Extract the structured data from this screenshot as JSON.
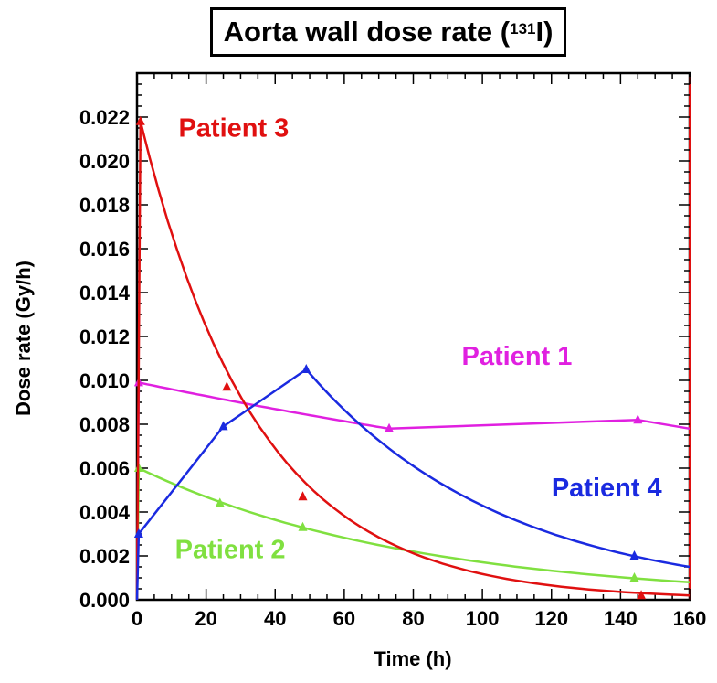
{
  "chart_data": {
    "type": "line",
    "title": {
      "prefix": "Aorta wall dose rate (",
      "superscript": "131",
      "suffix": "I)"
    },
    "xlabel": "Time (h)",
    "ylabel": "Dose rate (Gy/h)",
    "xlim": [
      0,
      160
    ],
    "ylim": [
      0,
      0.024
    ],
    "xticks": [
      0,
      20,
      40,
      60,
      80,
      100,
      120,
      140,
      160
    ],
    "yticks": [
      "0.000",
      "0.002",
      "0.004",
      "0.006",
      "0.008",
      "0.010",
      "0.012",
      "0.014",
      "0.016",
      "0.018",
      "0.020",
      "0.022"
    ],
    "grid": false,
    "legend": "none (direct labels)",
    "series": [
      {
        "name": "Patient 1",
        "color": "#e020e0",
        "measured": [
          [
            0.5,
            0.0099
          ],
          [
            73,
            0.0078
          ],
          [
            145,
            0.0082
          ]
        ],
        "curve": [
          [
            0,
            0.0
          ],
          [
            0.5,
            0.0099
          ],
          [
            73,
            0.0078
          ],
          [
            145,
            0.0082
          ],
          [
            160,
            0.0078
          ]
        ]
      },
      {
        "name": "Patient 2",
        "color": "#80e040",
        "measured": [
          [
            0.5,
            0.006
          ],
          [
            24,
            0.0044
          ],
          [
            48,
            0.0033
          ],
          [
            144,
            0.001
          ]
        ],
        "curve": [
          [
            0,
            0.0
          ],
          [
            0.5,
            0.006
          ],
          [
            160,
            0.0008
          ]
        ]
      },
      {
        "name": "Patient 3",
        "color": "#e01010",
        "measured": [
          [
            1,
            0.0218
          ],
          [
            26,
            0.0097
          ],
          [
            48,
            0.0047
          ],
          [
            146,
            0.0002
          ]
        ],
        "curve": [
          [
            0,
            0.0
          ],
          [
            1,
            0.0218
          ],
          [
            160,
            0.0002
          ]
        ]
      },
      {
        "name": "Patient 4",
        "color": "#1a2ae0",
        "measured": [
          [
            0.5,
            0.003
          ],
          [
            25,
            0.0079
          ],
          [
            49,
            0.0105
          ],
          [
            144,
            0.002
          ]
        ],
        "curve": [
          [
            0,
            0.0
          ],
          [
            0.5,
            0.003
          ],
          [
            25,
            0.0079
          ],
          [
            49,
            0.0105
          ],
          [
            160,
            0.0015
          ]
        ]
      }
    ],
    "annotations": [
      {
        "text": "Patient 3",
        "series": "Patient 3",
        "x": 28,
        "y": 0.0211
      },
      {
        "text": "Patient 1",
        "series": "Patient 1",
        "x": 110,
        "y": 0.0107
      },
      {
        "text": "Patient 4",
        "series": "Patient 4",
        "x": 136,
        "y": 0.0047
      },
      {
        "text": "Patient 2",
        "series": "Patient 2",
        "x": 27,
        "y": 0.0019
      }
    ]
  }
}
